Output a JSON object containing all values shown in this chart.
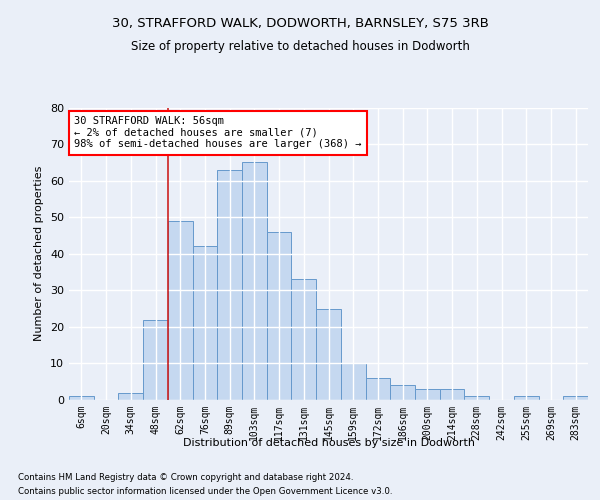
{
  "title1": "30, STRAFFORD WALK, DODWORTH, BARNSLEY, S75 3RB",
  "title2": "Size of property relative to detached houses in Dodworth",
  "xlabel": "Distribution of detached houses by size in Dodworth",
  "ylabel": "Number of detached properties",
  "categories": [
    "6sqm",
    "20sqm",
    "34sqm",
    "48sqm",
    "62sqm",
    "76sqm",
    "89sqm",
    "103sqm",
    "117sqm",
    "131sqm",
    "145sqm",
    "159sqm",
    "172sqm",
    "186sqm",
    "200sqm",
    "214sqm",
    "228sqm",
    "242sqm",
    "255sqm",
    "269sqm",
    "283sqm"
  ],
  "values": [
    1,
    0,
    2,
    22,
    49,
    42,
    63,
    65,
    46,
    33,
    25,
    10,
    6,
    4,
    3,
    3,
    1,
    0,
    1,
    0,
    1
  ],
  "bar_color": "#c5d8f0",
  "bar_edge_color": "#6699cc",
  "annotation_line1": "30 STRAFFORD WALK: 56sqm",
  "annotation_line2": "← 2% of detached houses are smaller (7)",
  "annotation_line3": "98% of semi-detached houses are larger (368) →",
  "annotation_box_color": "white",
  "annotation_box_edge": "red",
  "ylim": [
    0,
    80
  ],
  "yticks": [
    0,
    10,
    20,
    30,
    40,
    50,
    60,
    70,
    80
  ],
  "footer1": "Contains HM Land Registry data © Crown copyright and database right 2024.",
  "footer2": "Contains public sector information licensed under the Open Government Licence v3.0.",
  "background_color": "#eaeff8",
  "plot_background": "#eaeff8",
  "grid_color": "#ffffff"
}
